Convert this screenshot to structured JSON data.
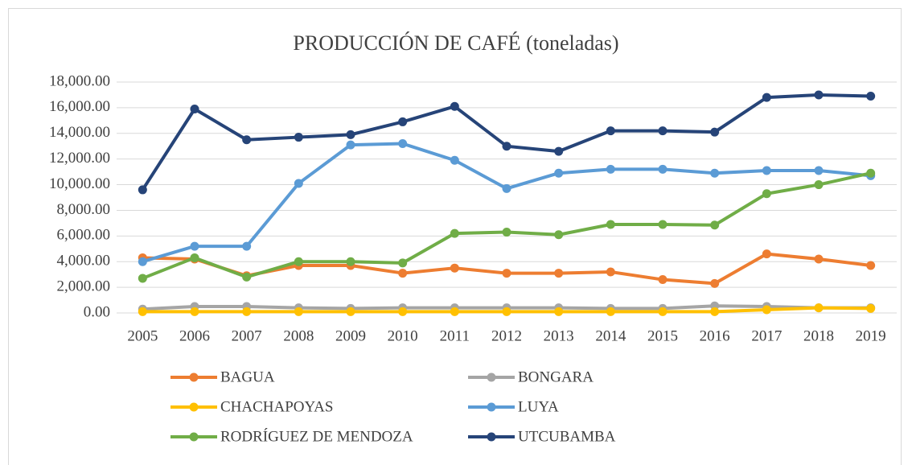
{
  "chart_data": {
    "type": "line",
    "title": "PRODUCCIÓN DE CAFÉ (toneladas)",
    "categories": [
      "2005",
      "2006",
      "2007",
      "2008",
      "2009",
      "2010",
      "2011",
      "2012",
      "2013",
      "2014",
      "2015",
      "2016",
      "2017",
      "2018",
      "2019"
    ],
    "series": [
      {
        "name": "BAGUA",
        "color": "#ED7D31",
        "values": [
          4300,
          4200,
          2900,
          3700,
          3700,
          3100,
          3500,
          3100,
          3100,
          3200,
          2600,
          2300,
          4600,
          4200,
          3700
        ]
      },
      {
        "name": "BONGARA",
        "color": "#A5A5A5",
        "values": [
          300,
          500,
          500,
          400,
          350,
          400,
          400,
          400,
          400,
          350,
          350,
          550,
          500,
          400,
          400
        ]
      },
      {
        "name": "CHACHAPOYAS",
        "color": "#FFC000",
        "values": [
          100,
          100,
          100,
          100,
          100,
          100,
          100,
          100,
          100,
          100,
          100,
          100,
          250,
          400,
          350
        ]
      },
      {
        "name": "LUYA",
        "color": "#5B9BD5",
        "values": [
          4000,
          5200,
          5200,
          10100,
          13100,
          13200,
          11900,
          9700,
          10900,
          11200,
          11200,
          10900,
          11100,
          11100,
          10700
        ]
      },
      {
        "name": "RODRÍGUEZ DE MENDOZA",
        "color": "#70AD47",
        "values": [
          2700,
          4300,
          2800,
          4000,
          4000,
          3900,
          6200,
          6300,
          6100,
          6900,
          6900,
          6850,
          9300,
          10000,
          10900
        ]
      },
      {
        "name": "UTCUBAMBA",
        "color": "#264478",
        "values": [
          9600,
          15900,
          13500,
          13700,
          13900,
          14900,
          16100,
          13000,
          12600,
          14200,
          14200,
          14100,
          16800,
          17000,
          16900
        ]
      }
    ],
    "ylim": [
      0,
      18000
    ],
    "yticks": [
      {
        "value": 0,
        "label": "0.00"
      },
      {
        "value": 2000,
        "label": "2,000.00"
      },
      {
        "value": 4000,
        "label": "4,000.00"
      },
      {
        "value": 6000,
        "label": "6,000.00"
      },
      {
        "value": 8000,
        "label": "8,000.00"
      },
      {
        "value": 10000,
        "label": "10,000.00"
      },
      {
        "value": 12000,
        "label": "12,000.00"
      },
      {
        "value": 14000,
        "label": "14,000.00"
      },
      {
        "value": 16000,
        "label": "16,000.00"
      },
      {
        "value": 18000,
        "label": "18,000.00"
      }
    ],
    "grid": true,
    "legend": "bottom"
  }
}
